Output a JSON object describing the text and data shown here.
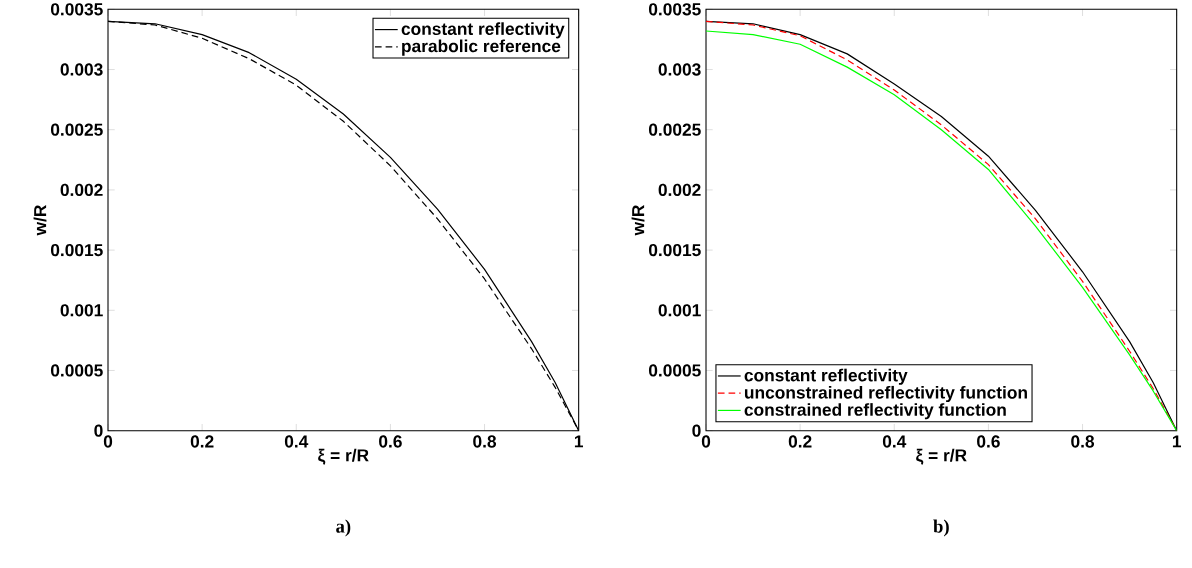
{
  "chart_data": [
    {
      "type": "line",
      "xlabel": "ξ = r/R",
      "ylabel": "w/R",
      "x": [
        0,
        0.1,
        0.2,
        0.3,
        0.4,
        0.5,
        0.6,
        0.7,
        0.8,
        0.9,
        0.95,
        1
      ],
      "xlim": [
        0,
        1
      ],
      "ylim": [
        0,
        0.0035
      ],
      "xticks": [
        0,
        0.2,
        0.4,
        0.6,
        0.8,
        1
      ],
      "yticks": [
        0,
        0.0005,
        0.001,
        0.0015,
        0.002,
        0.0025,
        0.003,
        0.0035
      ],
      "legend": "top right",
      "annotations": [
        "a)"
      ],
      "series": [
        {
          "name": "constant reflectivity",
          "color": "#000000",
          "line_style": "solid",
          "values": [
            0.0034,
            0.00338,
            0.00329,
            0.00314,
            0.00292,
            0.00263,
            0.00227,
            0.00184,
            0.00134,
            0.00074,
            0.0004,
            0
          ]
        },
        {
          "name": "parabolic reference",
          "color": "#000000",
          "line_style": "dashed",
          "values": [
            0.0034,
            0.00337,
            0.00326,
            0.00309,
            0.00287,
            0.00257,
            0.0022,
            0.00176,
            0.00126,
            0.00068,
            0.00036,
            0
          ]
        }
      ]
    },
    {
      "type": "line",
      "xlabel": "ξ = r/R",
      "ylabel": "w/R",
      "x": [
        0,
        0.1,
        0.2,
        0.3,
        0.4,
        0.5,
        0.6,
        0.7,
        0.8,
        0.9,
        0.95,
        1
      ],
      "xlim": [
        0,
        1
      ],
      "ylim": [
        0,
        0.0035
      ],
      "xticks": [
        0,
        0.2,
        0.4,
        0.6,
        0.8,
        1
      ],
      "yticks": [
        0,
        0.0005,
        0.001,
        0.0015,
        0.002,
        0.0025,
        0.003,
        0.0035
      ],
      "legend": "bottom left",
      "annotations": [
        "b)"
      ],
      "series": [
        {
          "name": "constant reflectivity",
          "color": "#000000",
          "line_style": "solid",
          "values": [
            0.0034,
            0.00338,
            0.00329,
            0.00313,
            0.00288,
            0.00261,
            0.00228,
            0.00183,
            0.00132,
            0.00074,
            0.0004,
            0
          ]
        },
        {
          "name": "unconstrained reflectivity function",
          "color": "#ff0000",
          "line_style": "dashed",
          "values": [
            0.0034,
            0.00337,
            0.00328,
            0.00308,
            0.00283,
            0.00254,
            0.00221,
            0.00176,
            0.00124,
            0.00066,
            0.00035,
            0
          ]
        },
        {
          "name": "constrained reflectivity function",
          "color": "#00ff00",
          "line_style": "solid",
          "values": [
            0.00332,
            0.00329,
            0.00321,
            0.00302,
            0.00279,
            0.0025,
            0.00217,
            0.0017,
            0.00119,
            0.00063,
            0.00033,
            0
          ]
        }
      ]
    }
  ]
}
